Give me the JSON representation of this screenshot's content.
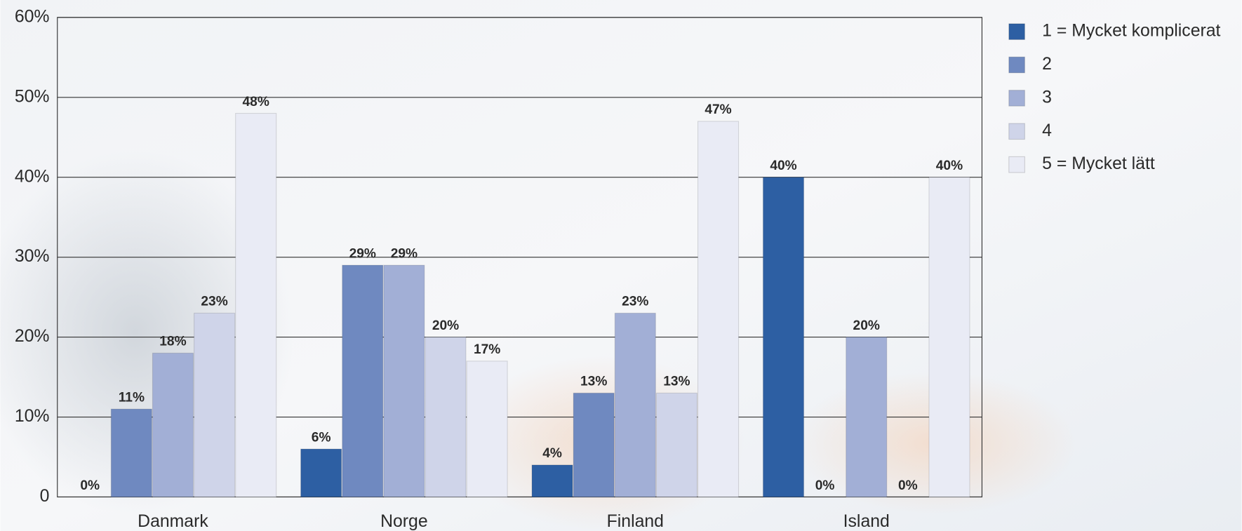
{
  "chart_data": {
    "type": "bar",
    "categories": [
      "Danmark",
      "Norge",
      "Finland",
      "Island"
    ],
    "series": [
      {
        "name": "1 = Mycket komplicerat",
        "color": "#2d5fa3",
        "values": [
          0,
          6,
          4,
          40
        ],
        "value_labels": [
          "0%",
          "6%",
          "4%",
          "40%"
        ]
      },
      {
        "name": "2",
        "color": "#6f89c0",
        "values": [
          11,
          29,
          13,
          0
        ],
        "value_labels": [
          "11%",
          "29%",
          "13%",
          "0%"
        ]
      },
      {
        "name": "3",
        "color": "#a2afd6",
        "values": [
          18,
          29,
          23,
          20
        ],
        "value_labels": [
          "18%",
          "29%",
          "23%",
          "20%"
        ]
      },
      {
        "name": "4",
        "color": "#cfd4e9",
        "values": [
          23,
          20,
          13,
          0
        ],
        "value_labels": [
          "23%",
          "20%",
          "13%",
          "0%"
        ]
      },
      {
        "name": "5 = Mycket lätt",
        "color": "#e9ebf5",
        "values": [
          48,
          17,
          47,
          40
        ],
        "value_labels": [
          "48%",
          "17%",
          "47%",
          "40%"
        ]
      }
    ],
    "ylim": [
      0,
      60
    ],
    "yticks": [
      0,
      {
        "value": 10,
        "label": "10%"
      },
      {
        "value": 20,
        "label": "20%"
      },
      {
        "value": 30,
        "label": "30%"
      },
      {
        "value": 40,
        "label": "40%"
      },
      {
        "value": 50,
        "label": "50%"
      },
      {
        "value": 60,
        "label": "60%"
      }
    ],
    "grid": true,
    "legend": "right"
  }
}
